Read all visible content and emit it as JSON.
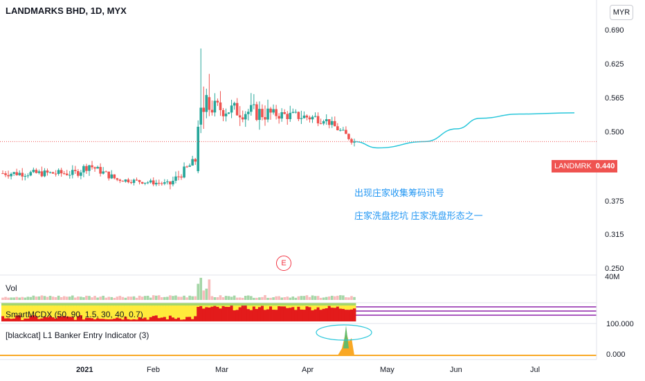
{
  "header": {
    "title": "LANDMARKS BHD, 1D, MYX",
    "currency": "MYR"
  },
  "price_axis": {
    "ticks": [
      "0.690",
      "0.625",
      "0.565",
      "0.500",
      "0.440",
      "0.375",
      "0.315",
      "0.250"
    ]
  },
  "last_price": {
    "symbol": "LANDMRK",
    "value": "0.440"
  },
  "annotations": {
    "line1": "出现庄家收集筹码讯号",
    "line2": "庄家洗盘挖坑   庄家洗盘形态之一"
  },
  "earnings_marker": "E",
  "volume_pane": {
    "label": "Vol",
    "axis_label": "40M"
  },
  "smartmcdx_pane": {
    "label": "SmartMCDX (50, 90, 1.5, 30, 40, 0.7)"
  },
  "banker_pane": {
    "label": "[blackcat] L1 Banker Entry Indicator (3)",
    "ticks": [
      "100.000",
      "0.000"
    ]
  },
  "time_axis": {
    "labels": [
      "2021",
      "Feb",
      "Mar",
      "Apr",
      "May",
      "Jun",
      "Jul"
    ]
  },
  "colors": {
    "up": "#26a69a",
    "down": "#ef5350",
    "annotation": "#2196f3",
    "banker_fill": "#f9a825",
    "banker_green": "#66bb6a",
    "mcdx_red": "#e31b1b",
    "mcdx_yellow": "#ffeb3b",
    "mcdx_green": "#a5d66a",
    "mcdx_line": "#8e24aa"
  },
  "chart_data": {
    "type": "candlestick",
    "y_range": [
      0.25,
      0.69
    ],
    "last_price": 0.44,
    "segments": [
      {
        "start": 0.365,
        "end": 0.365,
        "n": 26,
        "amp": 0.012
      },
      {
        "start": 0.365,
        "end": 0.385,
        "n": 6,
        "amp": 0.015
      },
      {
        "start": 0.38,
        "end": 0.35,
        "n": 10,
        "amp": 0.012
      },
      {
        "start": 0.35,
        "end": 0.34,
        "n": 18,
        "amp": 0.008
      },
      {
        "start": 0.34,
        "end": 0.395,
        "n": 10,
        "amp": 0.015
      }
    ],
    "pre_spike_last_close": 0.365,
    "spike_candles": [
      {
        "o": 0.37,
        "h": 0.49,
        "l": 0.365,
        "c": 0.475
      },
      {
        "o": 0.48,
        "h": 0.66,
        "l": 0.46,
        "c": 0.52
      },
      {
        "o": 0.52,
        "h": 0.57,
        "l": 0.47,
        "c": 0.51
      },
      {
        "o": 0.51,
        "h": 0.565,
        "l": 0.495,
        "c": 0.55
      },
      {
        "o": 0.545,
        "h": 0.6,
        "l": 0.5,
        "c": 0.515
      }
    ],
    "post_segments": [
      {
        "start": 0.52,
        "end": 0.505,
        "n": 22,
        "amp": 0.03
      },
      {
        "start": 0.505,
        "end": 0.495,
        "n": 18,
        "amp": 0.018
      },
      {
        "start": 0.495,
        "end": 0.44,
        "n": 12,
        "amp": 0.012
      }
    ],
    "projection_curve": [
      [
        0.44,
        0.44
      ],
      [
        0.5,
        0.425
      ],
      [
        0.62,
        0.44
      ],
      [
        0.7,
        0.47
      ],
      [
        0.76,
        0.495
      ],
      [
        0.86,
        0.505
      ],
      [
        1.0,
        0.508
      ]
    ]
  }
}
